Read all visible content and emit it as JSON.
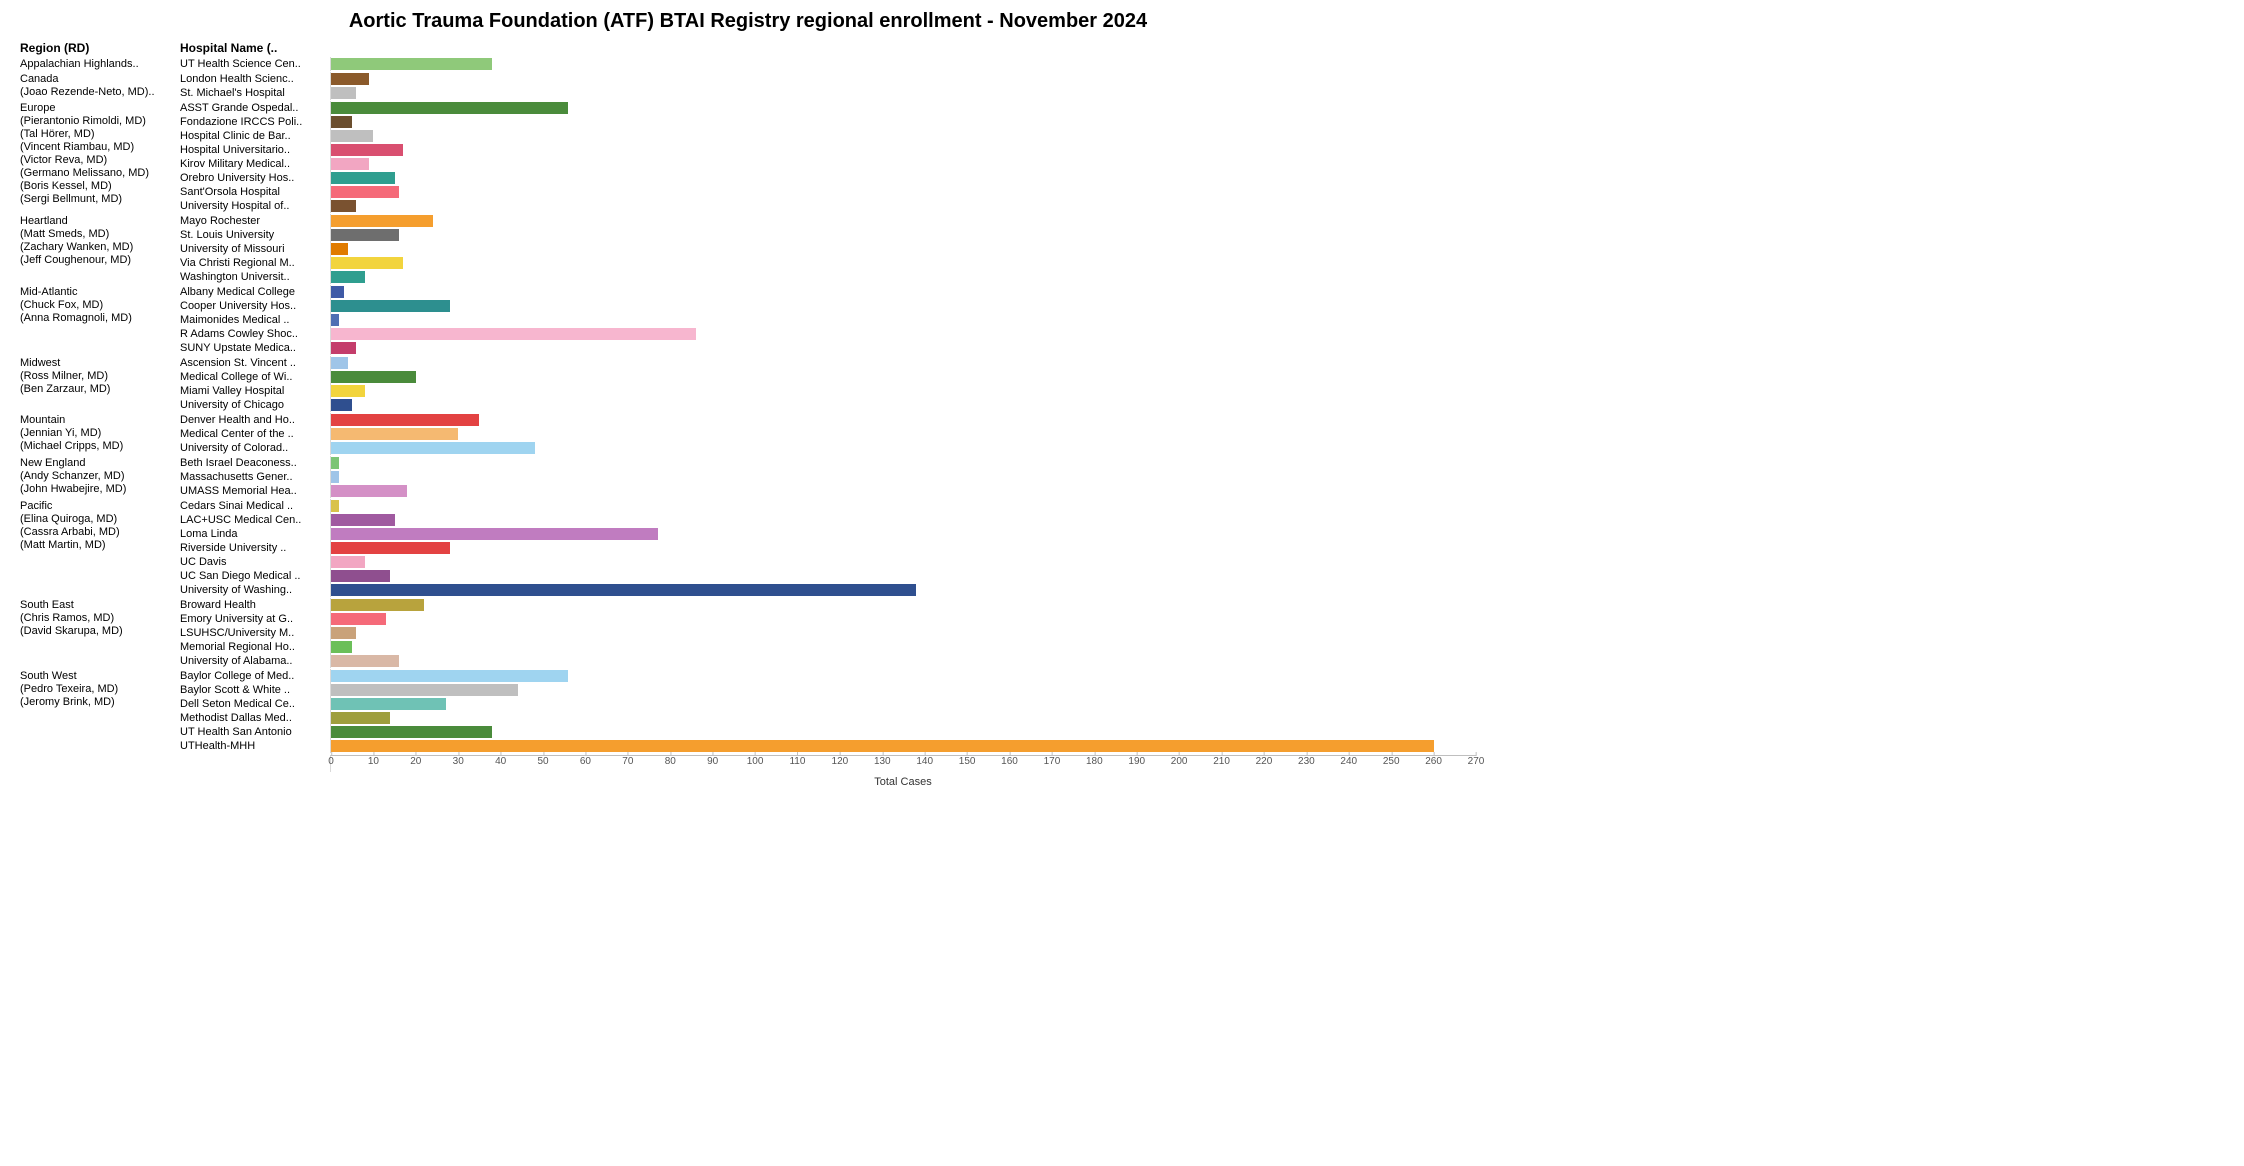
{
  "title": "Aortic Trauma Foundation (ATF) BTAI Registry regional enrollment - November 2024",
  "title_fontsize": 20,
  "header_region": "Region (RD)",
  "header_hospital": "Hospital Name (..",
  "axis_label": "Total Cases",
  "x_max": 270,
  "x_ticks": [
    0,
    10,
    20,
    30,
    40,
    50,
    60,
    70,
    80,
    90,
    100,
    110,
    120,
    130,
    140,
    150,
    160,
    170,
    180,
    190,
    200,
    210,
    220,
    230,
    240,
    250,
    260,
    270
  ],
  "label_fontsize": 11,
  "axis_fontsize": 10,
  "background_color": "#ffffff",
  "regions": [
    {
      "name": "Appalachian Highlands..",
      "rd_lines": [],
      "rows": [
        {
          "hospital": "UT Health Science Cen..",
          "value": 38,
          "color": "#8fc97a"
        }
      ]
    },
    {
      "name": "Canada",
      "rd_lines": [
        "(Joao Rezende-Neto, MD)..",
        ""
      ],
      "rows": [
        {
          "hospital": "London Health Scienc..",
          "value": 9,
          "color": "#8b5a2b"
        },
        {
          "hospital": "St. Michael's Hospital",
          "value": 6,
          "color": "#bfbfbf"
        }
      ]
    },
    {
      "name": "Europe",
      "rd_lines": [
        "(Pierantonio Rimoldi, MD)",
        "(Tal Hörer, MD)",
        "(Vincent Riambau, MD)",
        "(Victor Reva, MD)",
        "(Germano Melissano, MD)",
        "(Boris Kessel, MD)",
        "(Sergi Bellmunt, MD)"
      ],
      "rows": [
        {
          "hospital": "ASST Grande Ospedal..",
          "value": 56,
          "color": "#4a8b3b"
        },
        {
          "hospital": "Fondazione IRCCS Poli..",
          "value": 5,
          "color": "#6b4e2e"
        },
        {
          "hospital": "Hospital Clinic de Bar..",
          "value": 10,
          "color": "#bfbfbf"
        },
        {
          "hospital": "Hospital Universitario..",
          "value": 17,
          "color": "#d94f70"
        },
        {
          "hospital": "Kirov Military Medical..",
          "value": 9,
          "color": "#f2a6c2"
        },
        {
          "hospital": "Orebro University Hos..",
          "value": 15,
          "color": "#2f9e8f"
        },
        {
          "hospital": "Sant'Orsola Hospital",
          "value": 16,
          "color": "#f56a79"
        },
        {
          "hospital": "University Hospital of..",
          "value": 6,
          "color": "#7a5230"
        }
      ]
    },
    {
      "name": "Heartland",
      "rd_lines": [
        "(Matt Smeds, MD)",
        "(Zachary Wanken, MD)",
        "(Jeff Coughenour, MD)"
      ],
      "rows": [
        {
          "hospital": "Mayo Rochester",
          "value": 24,
          "color": "#f59e2e"
        },
        {
          "hospital": "St. Louis University",
          "value": 16,
          "color": "#6e6e6e"
        },
        {
          "hospital": "University of Missouri",
          "value": 4,
          "color": "#e07b00"
        },
        {
          "hospital": "Via Christi Regional M..",
          "value": 17,
          "color": "#f2d43d"
        },
        {
          "hospital": "Washington Universit..",
          "value": 8,
          "color": "#2f9e8f"
        }
      ]
    },
    {
      "name": "Mid-Atlantic",
      "rd_lines": [
        "(Chuck Fox, MD)",
        "(Anna Romagnoli, MD)"
      ],
      "rows": [
        {
          "hospital": "Albany Medical College",
          "value": 3,
          "color": "#3f5aa6"
        },
        {
          "hospital": "Cooper University Hos..",
          "value": 28,
          "color": "#2d8f8f"
        },
        {
          "hospital": "Maimonides Medical ..",
          "value": 2,
          "color": "#4f6fb3"
        },
        {
          "hospital": "R Adams Cowley Shoc..",
          "value": 86,
          "color": "#f7b6cf"
        },
        {
          "hospital": "SUNY Upstate Medica..",
          "value": 6,
          "color": "#c43d6b"
        }
      ]
    },
    {
      "name": "Midwest",
      "rd_lines": [
        "(Ross Milner, MD)",
        "(Ben Zarzaur, MD)"
      ],
      "rows": [
        {
          "hospital": "Ascension St. Vincent ..",
          "value": 4,
          "color": "#9fc5e8"
        },
        {
          "hospital": "Medical College of Wi..",
          "value": 20,
          "color": "#4a8b3b"
        },
        {
          "hospital": "Miami Valley Hospital",
          "value": 8,
          "color": "#f2d43d"
        },
        {
          "hospital": "University of Chicago",
          "value": 5,
          "color": "#2f4f8f"
        }
      ]
    },
    {
      "name": "Mountain",
      "rd_lines": [
        "(Jennian Yi, MD)",
        "(Michael Cripps, MD)"
      ],
      "rows": [
        {
          "hospital": "Denver Health and Ho..",
          "value": 35,
          "color": "#e34242"
        },
        {
          "hospital": "Medical Center of the ..",
          "value": 30,
          "color": "#f5b971"
        },
        {
          "hospital": "University of Colorad..",
          "value": 48,
          "color": "#9fd4f0"
        }
      ]
    },
    {
      "name": "New England",
      "rd_lines": [
        "(Andy Schanzer, MD)",
        "(John Hwabejire, MD)"
      ],
      "rows": [
        {
          "hospital": "Beth Israel Deaconess..",
          "value": 2,
          "color": "#7cc576"
        },
        {
          "hospital": "Massachusetts Gener..",
          "value": 2,
          "color": "#9fc5e8"
        },
        {
          "hospital": "UMASS Memorial Hea..",
          "value": 18,
          "color": "#d490c6"
        }
      ]
    },
    {
      "name": "Pacific",
      "rd_lines": [
        "(Elina Quiroga, MD)",
        "(Cassra Arbabi, MD)",
        "(Matt Martin, MD)"
      ],
      "rows": [
        {
          "hospital": "Cedars Sinai Medical ..",
          "value": 2,
          "color": "#d9c24a"
        },
        {
          "hospital": "LAC+USC Medical Cen..",
          "value": 15,
          "color": "#a05aa0"
        },
        {
          "hospital": "Loma Linda",
          "value": 77,
          "color": "#c07cc0"
        },
        {
          "hospital": "Riverside University ..",
          "value": 28,
          "color": "#e34242"
        },
        {
          "hospital": "UC Davis",
          "value": 8,
          "color": "#f2a6c2"
        },
        {
          "hospital": "UC San Diego Medical ..",
          "value": 14,
          "color": "#8f4f8f"
        },
        {
          "hospital": "University of Washing..",
          "value": 138,
          "color": "#2f4f8f"
        }
      ]
    },
    {
      "name": "South East",
      "rd_lines": [
        "(Chris Ramos, MD)",
        "(David Skarupa, MD)"
      ],
      "rows": [
        {
          "hospital": "Broward Health",
          "value": 22,
          "color": "#b8a33d"
        },
        {
          "hospital": "Emory University at G..",
          "value": 13,
          "color": "#f56a79"
        },
        {
          "hospital": "LSUHSC/University M..",
          "value": 6,
          "color": "#c9a27a"
        },
        {
          "hospital": "Memorial Regional Ho..",
          "value": 5,
          "color": "#6bbf59"
        },
        {
          "hospital": "University of Alabama..",
          "value": 16,
          "color": "#d9b8a6"
        }
      ]
    },
    {
      "name": "South West",
      "rd_lines": [
        "(Pedro Texeira, MD)",
        "(Jeromy Brink, MD)"
      ],
      "rows": [
        {
          "hospital": "Baylor College of Med..",
          "value": 56,
          "color": "#9fd4f0"
        },
        {
          "hospital": "Baylor Scott & White ..",
          "value": 44,
          "color": "#bfbfbf"
        },
        {
          "hospital": "Dell Seton Medical Ce..",
          "value": 27,
          "color": "#6fc2b5"
        },
        {
          "hospital": "Methodist Dallas Med..",
          "value": 14,
          "color": "#9e9e3d"
        },
        {
          "hospital": "UT Health San Antonio",
          "value": 38,
          "color": "#4a8b3b"
        },
        {
          "hospital": "UTHealth-MHH",
          "value": 260,
          "color": "#f59e2e"
        }
      ]
    }
  ]
}
